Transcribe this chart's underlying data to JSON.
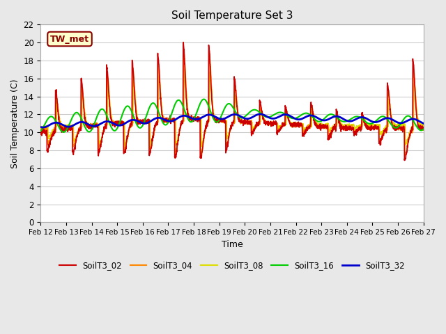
{
  "title": "Soil Temperature Set 3",
  "xlabel": "Time",
  "ylabel": "Soil Temperature (C)",
  "ylim": [
    0,
    22
  ],
  "yticks": [
    0,
    2,
    4,
    6,
    8,
    10,
    12,
    14,
    16,
    18,
    20,
    22
  ],
  "fig_bg_color": "#e8e8e8",
  "plot_bg_color": "#ffffff",
  "annotation_text": "TW_met",
  "annotation_bg": "#ffffcc",
  "annotation_border": "#8b0000",
  "legend_entries": [
    "SoilT3_02",
    "SoilT3_04",
    "SoilT3_08",
    "SoilT3_16",
    "SoilT3_32"
  ],
  "line_colors": [
    "#cc0000",
    "#ff8800",
    "#dddd00",
    "#00cc00",
    "#0000cc"
  ],
  "line_widths": [
    1.2,
    1.2,
    1.2,
    1.5,
    2.0
  ]
}
